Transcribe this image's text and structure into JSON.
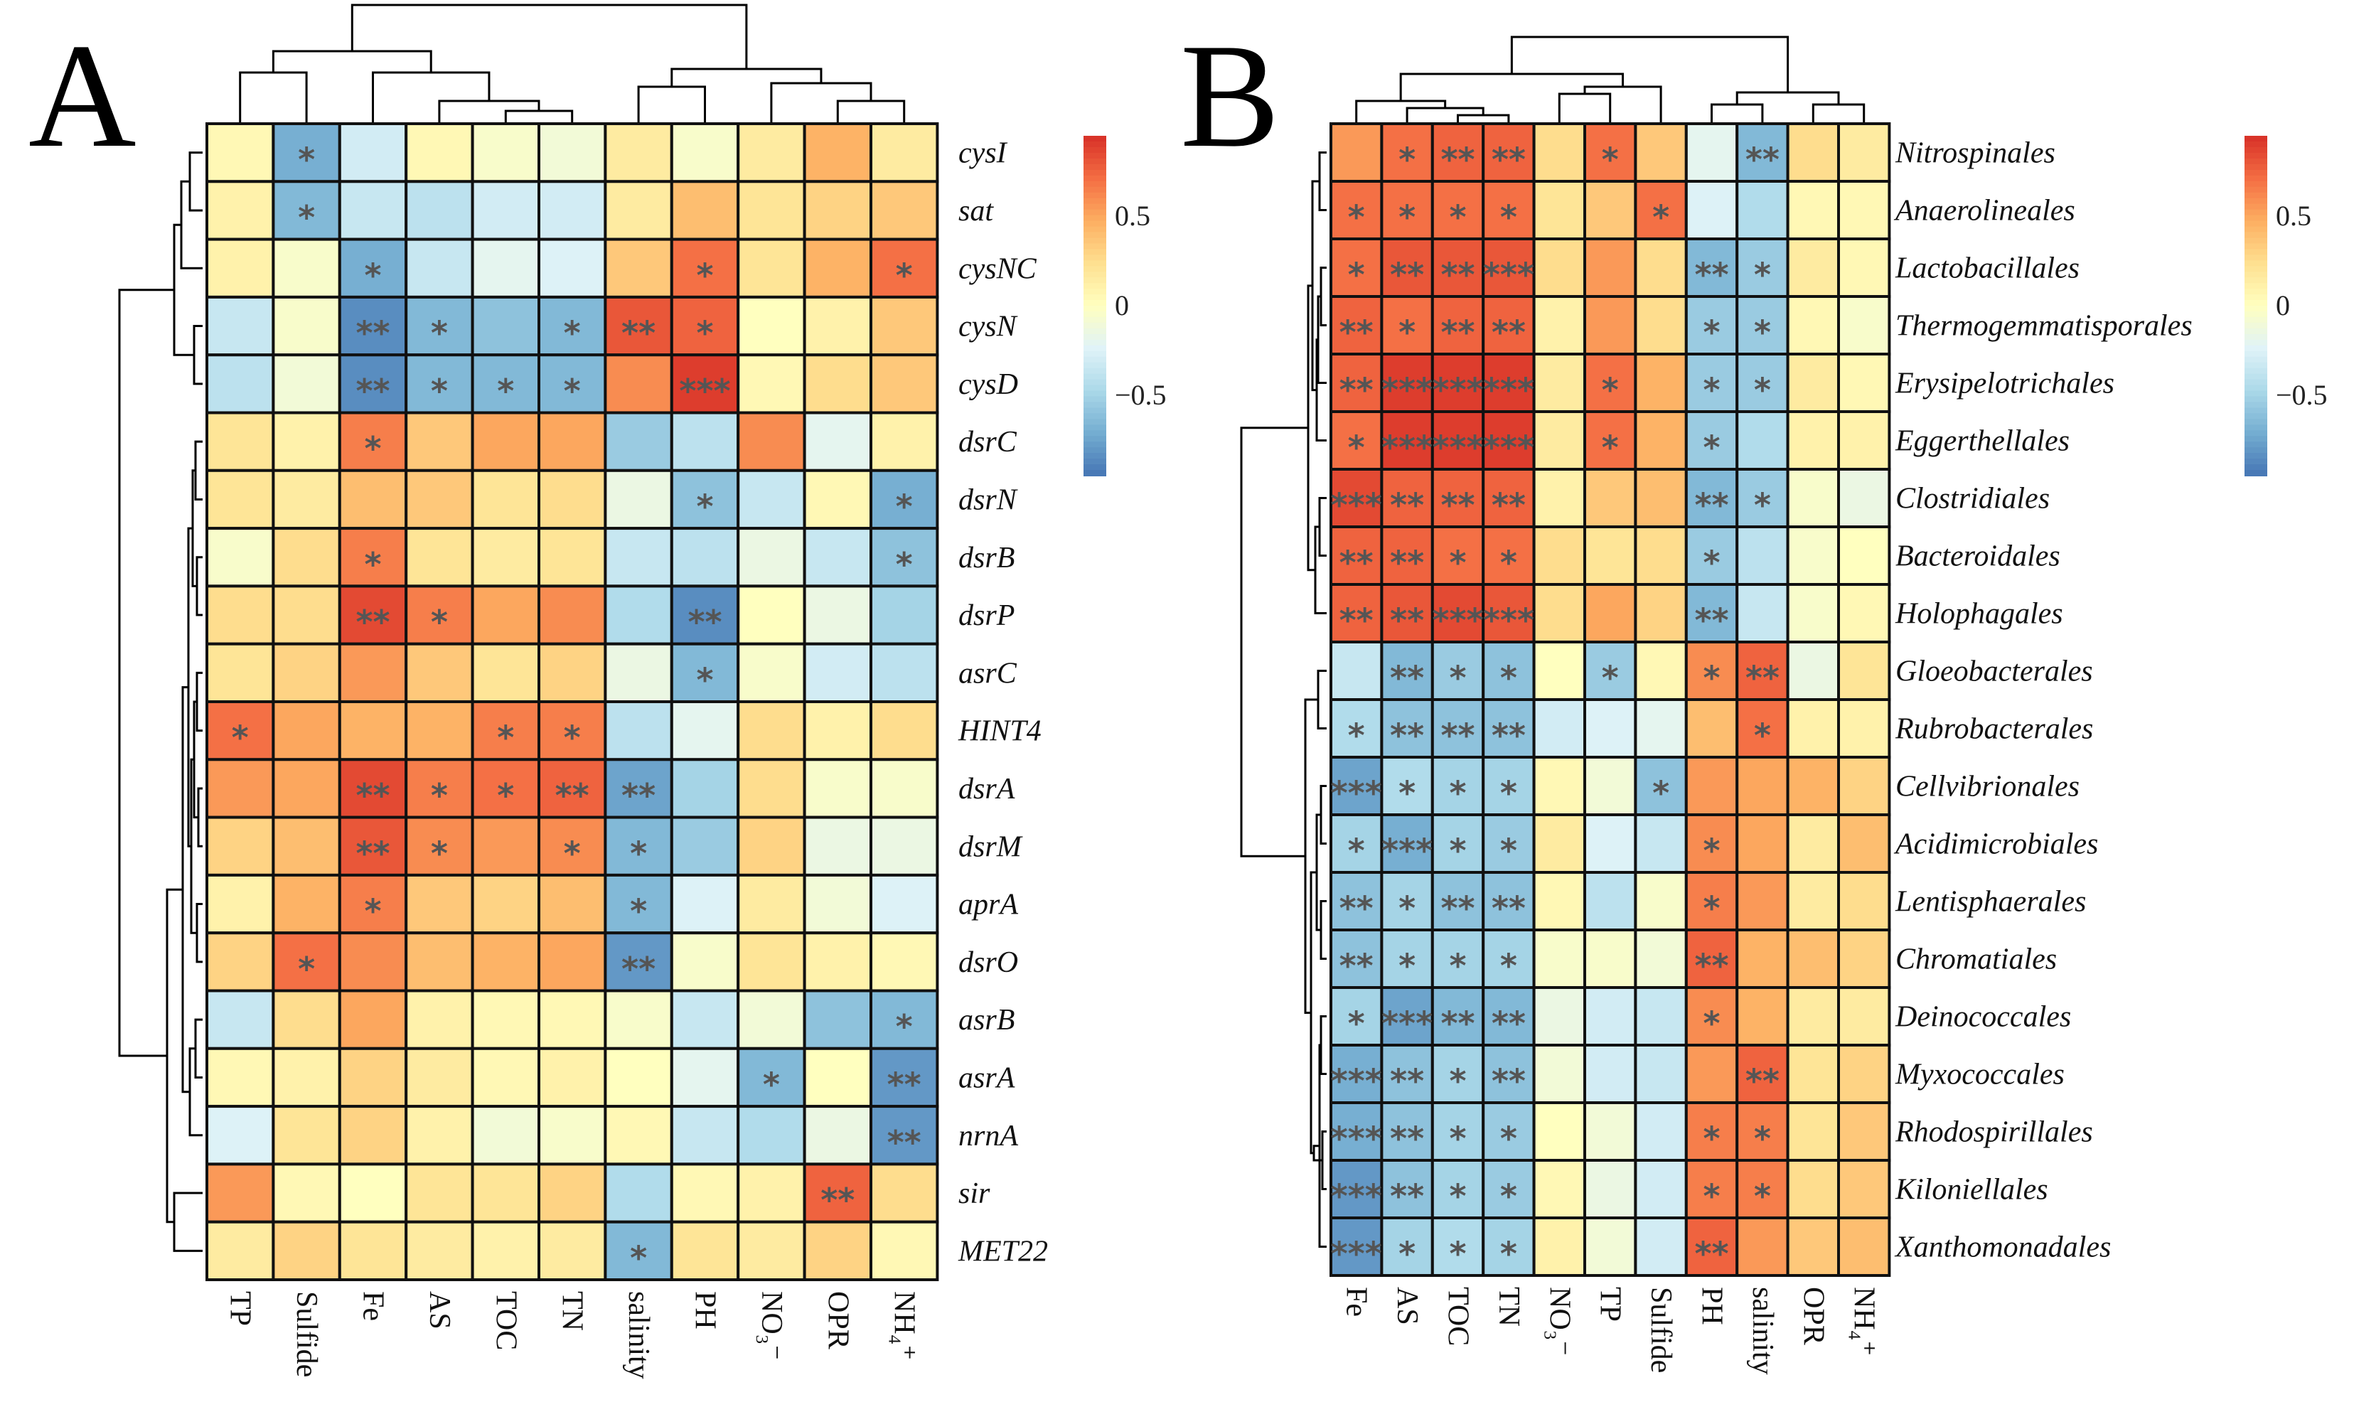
{
  "chart_data": [
    {
      "type": "heatmap",
      "panel_label": "A",
      "rows": [
        "cysI",
        "sat",
        "cysNC",
        "cysN",
        "cysD",
        "dsrC",
        "dsrN",
        "dsrB",
        "dsrP",
        "asrC",
        "HINT4",
        "dsrA",
        "dsrM",
        "aprA",
        "dsrO",
        "asrB",
        "asrA",
        "nrnA",
        "sir",
        "MET22"
      ],
      "columns": [
        "TP",
        "Sulfide",
        "Fe",
        "AS",
        "TOC",
        "TN",
        "salinity",
        "PH",
        "NO₃⁻",
        "OPR",
        "NH₄⁺"
      ],
      "values": [
        [
          0.05,
          -0.7,
          -0.3,
          0.05,
          -0.05,
          -0.1,
          0.15,
          -0.05,
          0.15,
          0.45,
          0.15
        ],
        [
          0.1,
          -0.65,
          -0.35,
          -0.4,
          -0.3,
          -0.3,
          0.15,
          0.4,
          0.2,
          0.3,
          0.35
        ],
        [
          0.1,
          -0.05,
          -0.7,
          -0.35,
          -0.2,
          -0.25,
          0.35,
          0.7,
          0.2,
          0.45,
          0.7
        ],
        [
          -0.35,
          -0.05,
          -0.85,
          -0.65,
          -0.6,
          -0.65,
          0.8,
          0.75,
          0.0,
          0.1,
          0.35
        ],
        [
          -0.4,
          -0.1,
          -0.85,
          -0.65,
          -0.65,
          -0.65,
          0.6,
          0.9,
          0.05,
          0.25,
          0.35
        ],
        [
          0.2,
          0.1,
          0.65,
          0.35,
          0.5,
          0.5,
          -0.55,
          -0.4,
          0.6,
          -0.2,
          0.1
        ],
        [
          0.2,
          0.15,
          0.4,
          0.35,
          0.2,
          0.25,
          -0.15,
          -0.6,
          -0.35,
          0.05,
          -0.7
        ],
        [
          -0.05,
          0.25,
          0.65,
          0.2,
          0.15,
          0.2,
          -0.35,
          -0.4,
          -0.15,
          -0.35,
          -0.6
        ],
        [
          0.25,
          0.25,
          0.85,
          0.65,
          0.5,
          0.6,
          -0.45,
          -0.85,
          0.0,
          -0.15,
          -0.5
        ],
        [
          0.2,
          0.3,
          0.55,
          0.35,
          0.2,
          0.3,
          -0.15,
          -0.65,
          -0.05,
          -0.3,
          -0.4
        ],
        [
          0.7,
          0.5,
          0.45,
          0.45,
          0.65,
          0.65,
          -0.4,
          -0.2,
          0.25,
          0.1,
          0.25
        ],
        [
          0.55,
          0.5,
          0.85,
          0.65,
          0.7,
          0.75,
          -0.75,
          -0.5,
          0.25,
          -0.05,
          -0.05
        ],
        [
          0.3,
          0.4,
          0.8,
          0.6,
          0.55,
          0.6,
          -0.65,
          -0.55,
          0.3,
          -0.15,
          -0.15
        ],
        [
          0.1,
          0.45,
          0.65,
          0.35,
          0.3,
          0.4,
          -0.65,
          -0.25,
          0.15,
          -0.1,
          -0.25
        ],
        [
          0.3,
          0.7,
          0.6,
          0.4,
          0.45,
          0.5,
          -0.8,
          -0.05,
          0.2,
          0.1,
          0.05
        ],
        [
          -0.35,
          0.25,
          0.5,
          0.1,
          0.05,
          0.05,
          -0.05,
          -0.35,
          -0.1,
          -0.6,
          -0.65
        ],
        [
          0.05,
          0.1,
          0.3,
          0.15,
          0.05,
          0.1,
          0.0,
          -0.2,
          -0.65,
          0.0,
          -0.8
        ],
        [
          -0.25,
          0.2,
          0.3,
          0.1,
          -0.1,
          -0.05,
          0.05,
          -0.35,
          -0.45,
          -0.15,
          -0.8
        ],
        [
          0.55,
          0.05,
          0.0,
          0.2,
          0.2,
          0.3,
          -0.45,
          0.05,
          0.1,
          0.75,
          0.25
        ],
        [
          0.15,
          0.3,
          0.2,
          0.15,
          0.1,
          0.15,
          -0.65,
          0.2,
          0.15,
          0.3,
          0.05
        ]
      ],
      "significance": [
        [
          "",
          "*",
          "",
          "",
          "",
          "",
          "",
          "",
          "",
          "",
          ""
        ],
        [
          "",
          "*",
          "",
          "",
          "",
          "",
          "",
          "",
          "",
          "",
          ""
        ],
        [
          "",
          "",
          "*",
          "",
          "",
          "",
          "",
          "*",
          "",
          "",
          "*"
        ],
        [
          "",
          "",
          "**",
          "*",
          "",
          "*",
          "**",
          "*",
          "",
          "",
          ""
        ],
        [
          "",
          "",
          "**",
          "*",
          "*",
          "*",
          "",
          "***",
          "",
          "",
          ""
        ],
        [
          "",
          "",
          "*",
          "",
          "",
          "",
          "",
          "",
          "",
          "",
          ""
        ],
        [
          "",
          "",
          "",
          "",
          "",
          "",
          "",
          "*",
          "",
          "",
          "*"
        ],
        [
          "",
          "",
          "*",
          "",
          "",
          "",
          "",
          "",
          "",
          "",
          "*"
        ],
        [
          "",
          "",
          "**",
          "*",
          "",
          "",
          "",
          "**",
          "",
          "",
          ""
        ],
        [
          "",
          "",
          "",
          "",
          "",
          "",
          "",
          "*",
          "",
          "",
          ""
        ],
        [
          "*",
          "",
          "",
          "",
          "*",
          "*",
          "",
          "",
          "",
          "",
          ""
        ],
        [
          "",
          "",
          "**",
          "*",
          "*",
          "**",
          "**",
          "",
          "",
          "",
          ""
        ],
        [
          "",
          "",
          "**",
          "*",
          "",
          "*",
          "*",
          "",
          "",
          "",
          ""
        ],
        [
          "",
          "",
          "*",
          "",
          "",
          "",
          "*",
          "",
          "",
          "",
          ""
        ],
        [
          "",
          "*",
          "",
          "",
          "",
          "",
          "**",
          "",
          "",
          "",
          ""
        ],
        [
          "",
          "",
          "",
          "",
          "",
          "",
          "",
          "",
          "",
          "",
          "*"
        ],
        [
          "",
          "",
          "",
          "",
          "",
          "",
          "",
          "",
          "*",
          "",
          "**"
        ],
        [
          "",
          "",
          "",
          "",
          "",
          "",
          "",
          "",
          "",
          "",
          "**"
        ],
        [
          "",
          "",
          "",
          "",
          "",
          "",
          "",
          "",
          "",
          "**",
          ""
        ],
        [
          "",
          "",
          "",
          "",
          "",
          "",
          "*",
          "",
          "",
          "",
          ""
        ]
      ],
      "colorbar": {
        "ticks": [
          0.5,
          0,
          -0.5
        ],
        "tick_labels": [
          "0.5",
          "0",
          "−0.5"
        ],
        "range": [
          -0.95,
          0.95
        ]
      }
    },
    {
      "type": "heatmap",
      "panel_label": "B",
      "rows": [
        "Nitrospinales",
        "Anaerolineales",
        "Lactobacillales",
        "Thermogemmatisporales",
        "Erysipelotrichales",
        "Eggerthellales",
        "Clostridiales",
        "Bacteroidales",
        "Holophagales",
        "Gloeobacterales",
        "Rubrobacterales",
        "Cellvibrionales",
        "Acidimicrobiales",
        "Lentisphaerales",
        "Chromatiales",
        "Deinococcales",
        "Myxococcales",
        "Rhodospirillales",
        "Kiloniellales",
        "Xanthomonadales"
      ],
      "columns": [
        "Fe",
        "AS",
        "TOC",
        "TN",
        "NO₃⁻",
        "TP",
        "Sulfide",
        "PH",
        "salinity",
        "OPR",
        "NH₄⁺"
      ],
      "values": [
        [
          0.55,
          0.7,
          0.75,
          0.75,
          0.25,
          0.7,
          0.35,
          -0.2,
          -0.65,
          0.25,
          0.15
        ],
        [
          0.7,
          0.7,
          0.7,
          0.7,
          0.2,
          0.35,
          0.7,
          -0.25,
          -0.45,
          0.05,
          0.05
        ],
        [
          0.7,
          0.8,
          0.8,
          0.8,
          0.25,
          0.55,
          0.25,
          -0.65,
          -0.55,
          0.15,
          0.05
        ],
        [
          0.75,
          0.7,
          0.75,
          0.75,
          0.1,
          0.55,
          0.25,
          -0.55,
          -0.55,
          0.05,
          -0.05
        ],
        [
          0.75,
          0.9,
          0.9,
          0.9,
          0.15,
          0.7,
          0.45,
          -0.55,
          -0.55,
          0.15,
          0.05
        ],
        [
          0.7,
          0.9,
          0.9,
          0.9,
          0.15,
          0.7,
          0.45,
          -0.55,
          -0.45,
          0.1,
          0.1
        ],
        [
          0.85,
          0.75,
          0.75,
          0.75,
          0.1,
          0.35,
          0.4,
          -0.65,
          -0.55,
          -0.05,
          -0.15
        ],
        [
          0.75,
          0.75,
          0.7,
          0.7,
          0.25,
          0.2,
          0.25,
          -0.55,
          -0.4,
          -0.05,
          0.0
        ],
        [
          0.75,
          0.8,
          0.85,
          0.8,
          0.25,
          0.5,
          0.3,
          -0.65,
          -0.35,
          -0.05,
          0.05
        ],
        [
          -0.35,
          -0.65,
          -0.55,
          -0.6,
          0.0,
          -0.55,
          0.05,
          0.6,
          0.75,
          -0.15,
          0.2
        ],
        [
          -0.45,
          -0.6,
          -0.6,
          -0.6,
          -0.3,
          -0.25,
          -0.2,
          0.4,
          0.7,
          0.1,
          0.1
        ],
        [
          -0.75,
          -0.45,
          -0.5,
          -0.5,
          0.05,
          -0.1,
          -0.6,
          0.55,
          0.5,
          0.45,
          0.3
        ],
        [
          -0.5,
          -0.7,
          -0.5,
          -0.55,
          0.15,
          -0.25,
          -0.35,
          0.6,
          0.5,
          0.15,
          0.4
        ],
        [
          -0.6,
          -0.5,
          -0.6,
          -0.6,
          0.05,
          -0.4,
          -0.05,
          0.65,
          0.55,
          0.15,
          0.25
        ],
        [
          -0.6,
          -0.5,
          -0.5,
          -0.5,
          -0.05,
          -0.05,
          -0.1,
          0.75,
          0.45,
          0.4,
          0.3
        ],
        [
          -0.5,
          -0.75,
          -0.65,
          -0.65,
          -0.15,
          -0.3,
          -0.35,
          0.6,
          0.45,
          0.15,
          0.15
        ],
        [
          -0.7,
          -0.6,
          -0.5,
          -0.6,
          -0.1,
          -0.3,
          -0.35,
          0.55,
          0.75,
          0.2,
          0.3
        ],
        [
          -0.7,
          -0.6,
          -0.5,
          -0.55,
          0.0,
          -0.1,
          -0.3,
          0.65,
          0.65,
          0.2,
          0.35
        ],
        [
          -0.8,
          -0.6,
          -0.5,
          -0.55,
          0.05,
          -0.15,
          -0.3,
          0.65,
          0.65,
          0.25,
          0.35
        ],
        [
          -0.8,
          -0.5,
          -0.45,
          -0.5,
          0.1,
          -0.1,
          -0.3,
          0.75,
          0.55,
          0.35,
          0.4
        ]
      ],
      "significance": [
        [
          "",
          "*",
          "**",
          "**",
          "",
          "*",
          "",
          "",
          "**",
          "",
          ""
        ],
        [
          "*",
          "*",
          "*",
          "*",
          "",
          "",
          "*",
          "",
          "",
          "",
          ""
        ],
        [
          "*",
          "**",
          "**",
          "***",
          "",
          "",
          "",
          "**",
          "*",
          "",
          ""
        ],
        [
          "**",
          "*",
          "**",
          "**",
          "",
          "",
          "",
          "*",
          "*",
          "",
          ""
        ],
        [
          "**",
          "***",
          "***",
          "***",
          "",
          "*",
          "",
          "*",
          "*",
          "",
          ""
        ],
        [
          "*",
          "***",
          "***",
          "***",
          "",
          "*",
          "",
          "*",
          "",
          "",
          ""
        ],
        [
          "***",
          "**",
          "**",
          "**",
          "",
          "",
          "",
          "**",
          "*",
          "",
          ""
        ],
        [
          "**",
          "**",
          "*",
          "*",
          "",
          "",
          "",
          "*",
          "",
          "",
          ""
        ],
        [
          "**",
          "**",
          "***",
          "***",
          "",
          "",
          "",
          "**",
          "",
          "",
          ""
        ],
        [
          "",
          "**",
          "*",
          "*",
          "",
          "*",
          "",
          "*",
          "**",
          "",
          ""
        ],
        [
          "*",
          "**",
          "**",
          "**",
          "",
          "",
          "",
          "",
          "*",
          "",
          ""
        ],
        [
          "***",
          "*",
          "*",
          "*",
          "",
          "",
          "*",
          "",
          "",
          "",
          ""
        ],
        [
          "*",
          "***",
          "*",
          "*",
          "",
          "",
          "",
          "*",
          "",
          "",
          ""
        ],
        [
          "**",
          "*",
          "**",
          "**",
          "",
          "",
          "",
          "*",
          "",
          "",
          ""
        ],
        [
          "**",
          "*",
          "*",
          "*",
          "",
          "",
          "",
          "**",
          "",
          "",
          ""
        ],
        [
          "*",
          "***",
          "**",
          "**",
          "",
          "",
          "",
          "*",
          "",
          "",
          ""
        ],
        [
          "***",
          "**",
          "*",
          "**",
          "",
          "",
          "",
          "",
          "**",
          "",
          ""
        ],
        [
          "***",
          "**",
          "*",
          "*",
          "",
          "",
          "",
          "*",
          "*",
          "",
          ""
        ],
        [
          "***",
          "**",
          "*",
          "*",
          "",
          "",
          "",
          "*",
          "*",
          "",
          ""
        ],
        [
          "***",
          "*",
          "*",
          "*",
          "",
          "",
          "",
          "**",
          "",
          "",
          ""
        ]
      ],
      "colorbar": {
        "ticks": [
          0.5,
          0,
          -0.5
        ],
        "tick_labels": [
          "0.5",
          "0",
          "−0.5"
        ],
        "range": [
          -0.95,
          0.95
        ]
      }
    }
  ],
  "colors": [
    "#4575b4",
    "#74add1",
    "#abd9e9",
    "#e0f3f8",
    "#ffffbf",
    "#fee090",
    "#fdae61",
    "#f46d43",
    "#d73027"
  ]
}
